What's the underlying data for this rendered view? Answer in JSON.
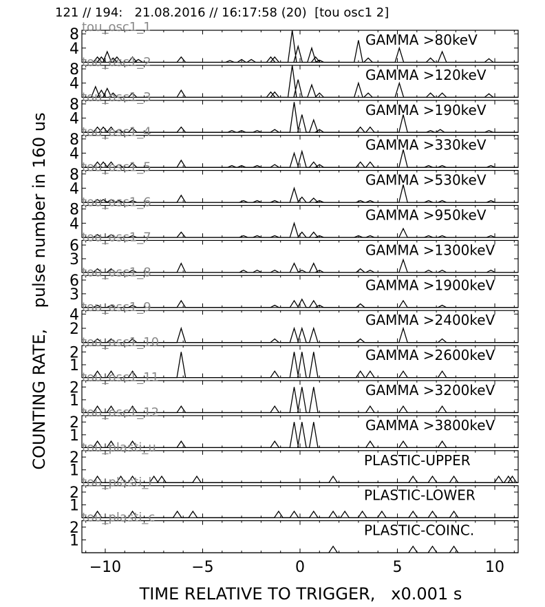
{
  "header": "121 // 194:   21.08.2016 // 16:17:58 (20)  [tou osc1 2]",
  "ylabel": "COUNTING RATE,    pulse number in 160 us",
  "xlabel": "TIME RELATIVE TO TRIGGER,   x0.001 s",
  "x_ticks": [
    "−10",
    "−5",
    "0",
    "5",
    "10"
  ],
  "chart_data": {
    "type": "line",
    "xlim": [
      -11.2,
      11.2
    ],
    "x_ticks": [
      -10,
      -5,
      0,
      5,
      10
    ],
    "grid": false,
    "panels": [
      {
        "id": "tou_osc1_1",
        "label": "GAMMA >80keV",
        "ylim": [
          0,
          9
        ],
        "yticks": [
          "8",
          "4"
        ],
        "points": [
          [
            -10.4,
            1.5
          ],
          [
            -10.2,
            1.5
          ],
          [
            -9.9,
            3
          ],
          [
            -9.6,
            1.2
          ],
          [
            -9.4,
            1.5
          ],
          [
            -8.6,
            1.5
          ],
          [
            -8.3,
            0.8
          ],
          [
            -6.1,
            1.5
          ],
          [
            -3.6,
            0.5
          ],
          [
            -3,
            0.8
          ],
          [
            -2.5,
            0.8
          ],
          [
            -1.5,
            1.5
          ],
          [
            -1.3,
            1.5
          ],
          [
            -0.4,
            9
          ],
          [
            -0.1,
            4.5
          ],
          [
            0.6,
            4
          ],
          [
            0.8,
            1.5
          ],
          [
            1,
            0.6
          ],
          [
            3,
            6.2
          ],
          [
            3.5,
            1.2
          ],
          [
            5.1,
            4
          ],
          [
            6.7,
            1.2
          ],
          [
            7.3,
            3
          ],
          [
            9.7,
            1
          ]
        ]
      },
      {
        "id": "tou_osc1_2",
        "label": "GAMMA >120keV",
        "ylim": [
          0,
          9
        ],
        "yticks": [
          "8",
          "4"
        ],
        "points": [
          [
            -10.5,
            3
          ],
          [
            -10.2,
            2
          ],
          [
            -9.9,
            2.5
          ],
          [
            -9.6,
            1.2
          ],
          [
            -8.6,
            1.2
          ],
          [
            -6.1,
            2
          ],
          [
            -1.5,
            1.5
          ],
          [
            -1.3,
            1.5
          ],
          [
            -0.4,
            9
          ],
          [
            -0.1,
            5
          ],
          [
            0.6,
            3.5
          ],
          [
            1,
            1.2
          ],
          [
            3,
            4
          ],
          [
            3.5,
            1.2
          ],
          [
            5.1,
            4
          ],
          [
            6.7,
            1.2
          ],
          [
            7.3,
            1.2
          ],
          [
            9.7,
            1
          ]
        ]
      },
      {
        "id": "tou_osc1_3",
        "label": "GAMMA >190keV",
        "ylim": [
          0,
          9
        ],
        "yticks": [
          "8",
          "4"
        ],
        "points": [
          [
            -10.4,
            1.5
          ],
          [
            -10.1,
            1.5
          ],
          [
            -9.7,
            1.5
          ],
          [
            -9.3,
            0.8
          ],
          [
            -8.6,
            1.2
          ],
          [
            -6.1,
            1.5
          ],
          [
            -3.5,
            0.5
          ],
          [
            -3,
            0.5
          ],
          [
            -2.2,
            0.5
          ],
          [
            -1.3,
            0.8
          ],
          [
            -0.3,
            8.5
          ],
          [
            0.1,
            5
          ],
          [
            0.7,
            3.5
          ],
          [
            1,
            0.8
          ],
          [
            3.1,
            1.5
          ],
          [
            3.6,
            1.5
          ],
          [
            5.3,
            5
          ],
          [
            6.7,
            0.5
          ],
          [
            7.2,
            0.8
          ],
          [
            9.7,
            0.5
          ]
        ]
      },
      {
        "id": "tou_osc1_4",
        "label": "GAMMA >330keV",
        "ylim": [
          0,
          9
        ],
        "yticks": [
          "8",
          "4"
        ],
        "points": [
          [
            -10.4,
            1.5
          ],
          [
            -10.1,
            1.5
          ],
          [
            -9.7,
            1.5
          ],
          [
            -9.3,
            0.8
          ],
          [
            -8.6,
            1.2
          ],
          [
            -6.1,
            2
          ],
          [
            -3.5,
            0.5
          ],
          [
            -3,
            0.5
          ],
          [
            -2.2,
            0.5
          ],
          [
            -1.3,
            0.8
          ],
          [
            -0.3,
            4
          ],
          [
            0.1,
            4.5
          ],
          [
            0.7,
            1.5
          ],
          [
            1,
            0.8
          ],
          [
            3.1,
            1.5
          ],
          [
            3.6,
            1.5
          ],
          [
            5.3,
            5
          ],
          [
            6.6,
            0.5
          ],
          [
            7.3,
            0.5
          ],
          [
            9.8,
            0.5
          ]
        ]
      },
      {
        "id": "tou_osc1_5",
        "label": "GAMMA >530keV",
        "ylim": [
          0,
          9
        ],
        "yticks": [
          "8",
          "4"
        ],
        "points": [
          [
            -10.4,
            0.8
          ],
          [
            -10.1,
            0.8
          ],
          [
            -9.7,
            0.8
          ],
          [
            -9.3,
            0.5
          ],
          [
            -8.6,
            0.5
          ],
          [
            -6.1,
            2
          ],
          [
            -2.9,
            0.5
          ],
          [
            -2.2,
            0.5
          ],
          [
            -1.3,
            0.5
          ],
          [
            -0.3,
            4
          ],
          [
            0.1,
            1.5
          ],
          [
            0.7,
            1.2
          ],
          [
            1,
            0.5
          ],
          [
            3.1,
            0.5
          ],
          [
            3.6,
            0.5
          ],
          [
            5.3,
            5
          ],
          [
            6.6,
            0.5
          ],
          [
            7.3,
            0.5
          ],
          [
            9.8,
            0.5
          ]
        ]
      },
      {
        "id": "tou_osc1_6",
        "label": "GAMMA >950keV",
        "ylim": [
          0,
          9
        ],
        "yticks": [
          "8",
          "4"
        ],
        "points": [
          [
            -10.4,
            0.8
          ],
          [
            -9.7,
            0.8
          ],
          [
            -8.6,
            0.5
          ],
          [
            -6.1,
            1.5
          ],
          [
            -2.9,
            0.5
          ],
          [
            -2.2,
            0.5
          ],
          [
            -1.3,
            0.5
          ],
          [
            -0.3,
            4
          ],
          [
            0.1,
            1.5
          ],
          [
            0.7,
            1.5
          ],
          [
            1,
            0.5
          ],
          [
            3,
            0.5
          ],
          [
            3.6,
            0.5
          ],
          [
            5.3,
            2.5
          ],
          [
            6.6,
            0.5
          ],
          [
            7.3,
            0.5
          ],
          [
            9.8,
            0.5
          ]
        ]
      },
      {
        "id": "tou_osc1_7",
        "label": "GAMMA >1300keV",
        "ylim": [
          0,
          7
        ],
        "yticks": [
          "6",
          "3"
        ],
        "points": [
          [
            -10.4,
            0.8
          ],
          [
            -9.7,
            0.8
          ],
          [
            -8.6,
            0.5
          ],
          [
            -6.1,
            2
          ],
          [
            -2.9,
            0.5
          ],
          [
            -2.2,
            0.5
          ],
          [
            -1.3,
            0.5
          ],
          [
            -0.3,
            2
          ],
          [
            0.1,
            0.5
          ],
          [
            0.7,
            2
          ],
          [
            1,
            0.5
          ],
          [
            3.1,
            0.8
          ],
          [
            3.6,
            0.5
          ],
          [
            5.3,
            2.8
          ],
          [
            6.6,
            0.5
          ],
          [
            7.3,
            0.5
          ],
          [
            9.8,
            0.5
          ]
        ]
      },
      {
        "id": "tou_osc1_8",
        "label": "GAMMA >1900keV",
        "ylim": [
          0,
          7
        ],
        "yticks": [
          "6",
          "3"
        ],
        "points": [
          [
            -10.4,
            0.5
          ],
          [
            -9.7,
            0.5
          ],
          [
            -8.6,
            0.5
          ],
          [
            -6.1,
            1.5
          ],
          [
            -1.3,
            0.5
          ],
          [
            -0.3,
            1.5
          ],
          [
            0.1,
            1.8
          ],
          [
            0.7,
            1.5
          ],
          [
            1,
            0.5
          ],
          [
            3.1,
            0.8
          ],
          [
            5.3,
            1.5
          ],
          [
            7.3,
            0.5
          ]
        ]
      },
      {
        "id": "tou_osc1_9",
        "label": "GAMMA >2400keV",
        "ylim": [
          0,
          4.5
        ],
        "yticks": [
          "4",
          "2"
        ],
        "points": [
          [
            -10.4,
            0.5
          ],
          [
            -9.7,
            0.5
          ],
          [
            -8.6,
            0.5
          ],
          [
            -6.1,
            2
          ],
          [
            -1.3,
            0.5
          ],
          [
            -0.3,
            2
          ],
          [
            0.1,
            2
          ],
          [
            0.7,
            2
          ],
          [
            3.1,
            0.5
          ],
          [
            5.3,
            2
          ],
          [
            7.3,
            0.5
          ]
        ]
      },
      {
        "id": "tou_osc1_10",
        "label": "GAMMA >2600keV",
        "ylim": [
          0,
          2.5
        ],
        "yticks": [
          "2",
          "1"
        ],
        "points": [
          [
            -10.4,
            0.5
          ],
          [
            -9.7,
            0.5
          ],
          [
            -8.6,
            0.5
          ],
          [
            -6.1,
            2
          ],
          [
            -1.3,
            0.5
          ],
          [
            -0.3,
            2
          ],
          [
            0.1,
            2
          ],
          [
            0.7,
            2
          ],
          [
            3.1,
            0.5
          ],
          [
            3.6,
            0.5
          ],
          [
            5.3,
            0.5
          ],
          [
            7.3,
            0.5
          ]
        ]
      },
      {
        "id": "tou_osc1_11",
        "label": "GAMMA >3200keV",
        "ylim": [
          0,
          2.5
        ],
        "yticks": [
          "2",
          "1"
        ],
        "points": [
          [
            -10.4,
            0.5
          ],
          [
            -9.7,
            0.5
          ],
          [
            -8.6,
            0.5
          ],
          [
            -6.1,
            0.5
          ],
          [
            -1.3,
            0.5
          ],
          [
            -0.3,
            2
          ],
          [
            0.1,
            2
          ],
          [
            0.7,
            2
          ],
          [
            3.6,
            0.5
          ],
          [
            5.3,
            0.5
          ],
          [
            7.3,
            0.5
          ]
        ]
      },
      {
        "id": "tou_osc1_12",
        "label": "GAMMA >3800keV",
        "ylim": [
          0,
          2.5
        ],
        "yticks": [
          "2",
          "1"
        ],
        "points": [
          [
            -10.4,
            0.5
          ],
          [
            -9.7,
            0.5
          ],
          [
            -8.6,
            0.5
          ],
          [
            -6.1,
            0.5
          ],
          [
            -1.3,
            0.5
          ],
          [
            -0.3,
            2
          ],
          [
            0.1,
            2
          ],
          [
            0.7,
            2
          ],
          [
            3.6,
            0.5
          ],
          [
            5.3,
            0.5
          ],
          [
            7.3,
            0.5
          ]
        ]
      },
      {
        "id": "tou_plasti_u",
        "label": "PLASTIC-UPPER",
        "ylim": [
          0,
          2.5
        ],
        "yticks": [
          "2",
          "1"
        ],
        "points": [
          [
            -10.4,
            0.5
          ],
          [
            -9.2,
            0.5
          ],
          [
            -8.6,
            0.5
          ],
          [
            -7.5,
            0.5
          ],
          [
            -7.1,
            0.5
          ],
          [
            -5.3,
            0.5
          ],
          [
            1.7,
            0.5
          ],
          [
            5.8,
            0.5
          ],
          [
            6.8,
            0.5
          ],
          [
            7.9,
            0.5
          ],
          [
            10.2,
            0.5
          ],
          [
            10.7,
            0.5
          ],
          [
            10.9,
            0.5
          ]
        ]
      },
      {
        "id": "tou_plasti_l",
        "label": "PLASTIC-LOWER",
        "ylim": [
          0,
          2.5
        ],
        "yticks": [
          "2",
          "1"
        ],
        "points": [
          [
            -10.4,
            0.5
          ],
          [
            -8.6,
            0.5
          ],
          [
            -6.3,
            0.5
          ],
          [
            -5.5,
            0.5
          ],
          [
            -1.1,
            0.5
          ],
          [
            -0.3,
            0.5
          ],
          [
            0.7,
            0.5
          ],
          [
            1.7,
            0.5
          ],
          [
            2.3,
            0.5
          ],
          [
            3.2,
            0.5
          ],
          [
            4.2,
            0.5
          ],
          [
            5.8,
            0.5
          ],
          [
            6.8,
            0.5
          ],
          [
            7.9,
            0.5
          ]
        ]
      },
      {
        "id": "tou_plasti_c",
        "label": "PLASTIC-COINC.",
        "ylim": [
          0,
          2.5
        ],
        "yticks": [
          "2",
          "1"
        ],
        "points": [
          [
            1.7,
            0.5
          ],
          [
            5.8,
            0.5
          ],
          [
            6.8,
            0.5
          ],
          [
            7.9,
            0.5
          ]
        ]
      }
    ]
  }
}
